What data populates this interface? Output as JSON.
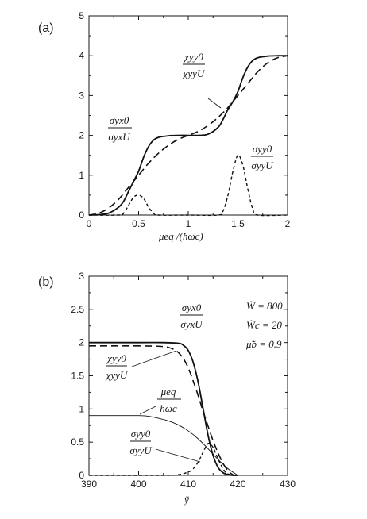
{
  "chart_data": [
    {
      "type": "line",
      "panel_label": "(a)",
      "xlabel": "μeq /(ħωc)",
      "xlim": [
        0,
        2
      ],
      "ylim": [
        0,
        5
      ],
      "x_ticks": [
        "0",
        "0.5",
        "1",
        "1.5",
        "2"
      ],
      "y_ticks": [
        "0",
        "1",
        "2",
        "3",
        "4",
        "5"
      ],
      "series": [
        {
          "id": "sigma_yx",
          "style": "solid",
          "x": [
            0,
            0.1,
            0.2,
            0.3,
            0.35,
            0.4,
            0.45,
            0.5,
            0.55,
            0.6,
            0.65,
            0.7,
            0.8,
            0.9,
            1.0,
            1.1,
            1.2,
            1.3,
            1.35,
            1.4,
            1.45,
            1.5,
            1.55,
            1.6,
            1.65,
            1.7,
            1.8,
            1.9,
            2.0
          ],
          "y": [
            0,
            0.01,
            0.05,
            0.2,
            0.35,
            0.6,
            0.85,
            1.1,
            1.45,
            1.72,
            1.88,
            1.95,
            1.99,
            2.0,
            2.0,
            2.0,
            2.03,
            2.2,
            2.4,
            2.65,
            2.85,
            3.1,
            3.45,
            3.72,
            3.88,
            3.95,
            3.99,
            4.0,
            4.0
          ]
        },
        {
          "id": "chi_yy",
          "style": "dashed",
          "x": [
            0,
            0.1,
            0.2,
            0.3,
            0.4,
            0.5,
            0.6,
            0.7,
            0.8,
            0.9,
            1.0,
            1.1,
            1.2,
            1.3,
            1.4,
            1.5,
            1.6,
            1.7,
            1.8,
            1.9,
            2.0
          ],
          "y": [
            0,
            0.05,
            0.18,
            0.4,
            0.7,
            1.0,
            1.3,
            1.55,
            1.75,
            1.9,
            2.0,
            2.1,
            2.25,
            2.45,
            2.7,
            3.0,
            3.3,
            3.6,
            3.82,
            3.95,
            4.0
          ]
        },
        {
          "id": "sigma_yy",
          "style": "dotted",
          "x": [
            0,
            0.3,
            0.35,
            0.4,
            0.45,
            0.5,
            0.55,
            0.6,
            0.65,
            0.7,
            1.0,
            1.3,
            1.35,
            1.4,
            1.45,
            1.5,
            1.55,
            1.6,
            1.65,
            1.7,
            2.0
          ],
          "y": [
            0,
            0,
            0.05,
            0.25,
            0.45,
            0.5,
            0.42,
            0.2,
            0.05,
            0,
            0,
            0,
            0.1,
            0.5,
            1.1,
            1.5,
            1.25,
            0.65,
            0.15,
            0,
            0
          ]
        }
      ],
      "annotations": {
        "sigma_yx": {
          "num": "σyx0",
          "den": "σyxU"
        },
        "chi_yy": {
          "num": "χyy0",
          "den": "χyyU"
        },
        "sigma_yy": {
          "num": "σyy0",
          "den": "σyyU"
        }
      }
    },
    {
      "type": "line",
      "panel_label": "(b)",
      "xlabel": "ỹ",
      "xlim": [
        390,
        430
      ],
      "ylim": [
        0,
        3
      ],
      "x_ticks": [
        "390",
        "400",
        "410",
        "420",
        "430"
      ],
      "y_ticks": [
        "0",
        "0.5",
        "1",
        "1.5",
        "2",
        "2.5",
        "3"
      ],
      "params": [
        "W̃ = 800",
        "W̃c = 20",
        "μ̃b = 0.9"
      ],
      "series": [
        {
          "id": "sigma_yx",
          "style": "solid",
          "x": [
            390,
            400,
            405,
            408,
            409,
            410,
            411,
            412,
            413,
            414,
            415,
            416,
            417,
            418,
            419,
            420
          ],
          "y": [
            2.0,
            2.0,
            2.0,
            1.99,
            1.96,
            1.88,
            1.7,
            1.4,
            1.0,
            0.6,
            0.3,
            0.12,
            0.04,
            0.01,
            0,
            0
          ]
        },
        {
          "id": "chi_yy",
          "style": "dashed",
          "x": [
            390,
            400,
            405,
            407,
            408,
            409,
            410,
            411,
            412,
            413,
            414,
            415,
            416,
            417,
            418,
            419,
            420
          ],
          "y": [
            1.95,
            1.95,
            1.94,
            1.9,
            1.85,
            1.76,
            1.62,
            1.42,
            1.2,
            0.96,
            0.74,
            0.52,
            0.34,
            0.18,
            0.07,
            0.01,
            0
          ]
        },
        {
          "id": "mu_eq",
          "style": "thin",
          "x": [
            390,
            396,
            400,
            402,
            404,
            406,
            408,
            410,
            412,
            414,
            416,
            418,
            420
          ],
          "y": [
            0.9,
            0.9,
            0.9,
            0.89,
            0.86,
            0.82,
            0.76,
            0.67,
            0.55,
            0.4,
            0.24,
            0.1,
            0
          ]
        },
        {
          "id": "sigma_yy",
          "style": "dotted",
          "x": [
            390,
            405,
            408,
            410,
            411,
            412,
            413,
            414,
            415,
            416,
            417,
            418,
            420
          ],
          "y": [
            0,
            0,
            0.01,
            0.05,
            0.1,
            0.2,
            0.35,
            0.48,
            0.42,
            0.25,
            0.1,
            0.02,
            0
          ]
        }
      ],
      "annotations": {
        "sigma_yx": {
          "num": "σyx0",
          "den": "σyxU"
        },
        "chi_yy": {
          "num": "χyy0",
          "den": "χyyU"
        },
        "mu_eq": {
          "num": "μeq",
          "den": "ħωc"
        },
        "sigma_yy": {
          "num": "σyy0",
          "den": "σyyU"
        }
      }
    }
  ]
}
